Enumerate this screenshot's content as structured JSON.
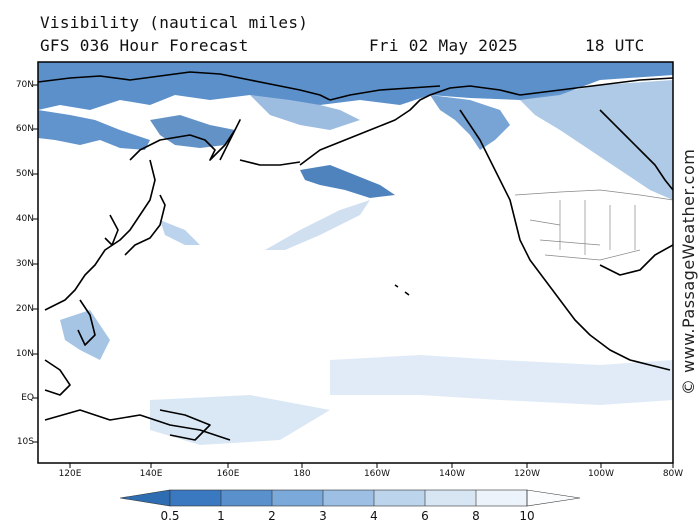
{
  "header": {
    "title": "Visibility (nautical miles)",
    "subtitle": "GFS 036 Hour Forecast",
    "date": "Fri 02 May 2025",
    "time": "18 UTC"
  },
  "map": {
    "lat_labels": [
      "70N",
      "60N",
      "50N",
      "40N",
      "30N",
      "20N",
      "10N",
      "EQ",
      "10S"
    ],
    "lon_labels": [
      "120E",
      "140E",
      "160E",
      "180",
      "160W",
      "140W",
      "120W",
      "100W",
      "80W"
    ],
    "watermark": "© www.PassageWeather.com"
  },
  "colorbar": {
    "labels": [
      "0.5",
      "1",
      "2",
      "3",
      "4",
      "6",
      "8",
      "10"
    ],
    "colors": [
      "#2f6db3",
      "#4a86c6",
      "#6b9fd3",
      "#8db6df",
      "#adcbe8",
      "#cbdef1",
      "#e4eef8",
      "#f7fafd"
    ]
  },
  "colors": {
    "land_outline": "#000000",
    "low_visibility": "#3a78bf",
    "haze": "#a9c6e6"
  }
}
